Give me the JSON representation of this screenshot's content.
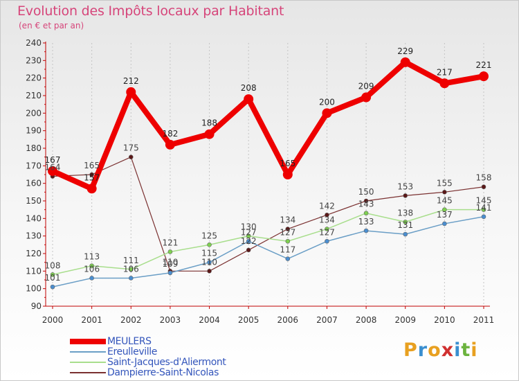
{
  "title": "Evolution des Impôts locaux par Habitant",
  "subtitle": "(en € et par an)",
  "logo": {
    "text": "Proxiti",
    "letters": [
      "P",
      "r",
      "o",
      "x",
      "i",
      "t",
      "i"
    ],
    "colors": [
      "#e8a020",
      "#3a8fd0",
      "#e8a020",
      "#d03030",
      "#3a8fd0",
      "#6cb33e",
      "#e8a020"
    ]
  },
  "chart_data": {
    "type": "line",
    "title": "Evolution des Impôts locaux par Habitant",
    "subtitle": "(en € et par an)",
    "xlabel": "",
    "ylabel": "",
    "x": [
      "2000",
      "2001",
      "2002",
      "2003",
      "2004",
      "2005",
      "2006",
      "2007",
      "2008",
      "2009",
      "2010",
      "2011"
    ],
    "ylim": [
      90,
      240
    ],
    "yticks": [
      90,
      100,
      110,
      120,
      130,
      140,
      150,
      160,
      170,
      180,
      190,
      200,
      210,
      220,
      230,
      240
    ],
    "grid": "vertical",
    "legend": "bottom-left",
    "series": [
      {
        "name": "MEULERS",
        "color": "#ee0000",
        "width": 8,
        "marker": 7,
        "labelColor": "#222222",
        "values": [
          167,
          157,
          212,
          182,
          188,
          208,
          165,
          200,
          209,
          229,
          217,
          221
        ]
      },
      {
        "name": "Ereulleville",
        "color": "#6a9ec6",
        "width": 1.5,
        "marker": 3,
        "markerColor": "#4a8ed0",
        "labelColor": "#444444",
        "values": [
          101,
          106,
          106,
          109,
          115,
          127,
          117,
          127,
          133,
          131,
          137,
          141
        ]
      },
      {
        "name": "Saint-Jacques-d'Aliermont",
        "color": "#a8de8c",
        "width": 1.5,
        "marker": 3,
        "markerColor": "#7ed050",
        "labelColor": "#444444",
        "values": [
          108,
          113,
          111,
          121,
          125,
          130,
          127,
          134,
          143,
          138,
          145,
          145
        ]
      },
      {
        "name": "Dampierre-Saint-Nicolas",
        "color": "#7a3030",
        "width": 1.2,
        "marker": 3,
        "markerColor": "#5a1818",
        "labelColor": "#444444",
        "values": [
          164,
          165,
          175,
          110,
          110,
          122,
          134,
          142,
          150,
          153,
          155,
          158
        ]
      }
    ]
  }
}
